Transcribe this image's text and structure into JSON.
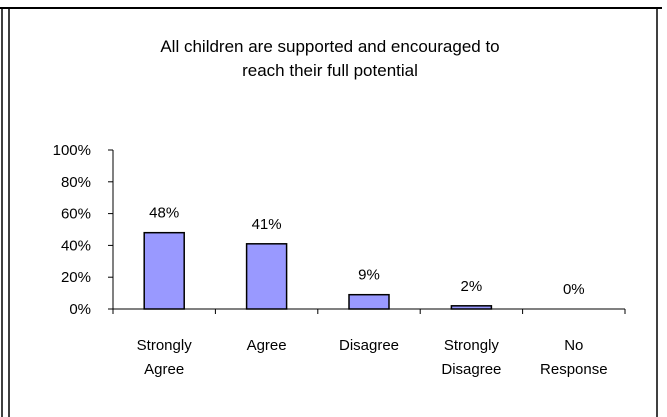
{
  "chart_data": {
    "type": "bar",
    "title": [
      "All children are supported and encouraged to",
      "reach their full potential"
    ],
    "categories": [
      [
        "Strongly",
        "Agree"
      ],
      [
        "Agree"
      ],
      [
        "Disagree"
      ],
      [
        "Strongly",
        "Disagree"
      ],
      [
        "No",
        "Response"
      ]
    ],
    "values": [
      48,
      41,
      9,
      2,
      0
    ],
    "data_labels": [
      "48%",
      "41%",
      "9%",
      "2%",
      "0%"
    ],
    "y_ticks": [
      "0%",
      "20%",
      "40%",
      "60%",
      "80%",
      "100%"
    ],
    "ylim": [
      0,
      100
    ],
    "xlabel": "",
    "ylabel": "",
    "grid": false,
    "legend": "none",
    "colors": {
      "bar_fill": "#9999ff",
      "bar_stroke": "#000000",
      "axis": "#000000",
      "frame": "#000000",
      "background": "#ffffff"
    }
  }
}
